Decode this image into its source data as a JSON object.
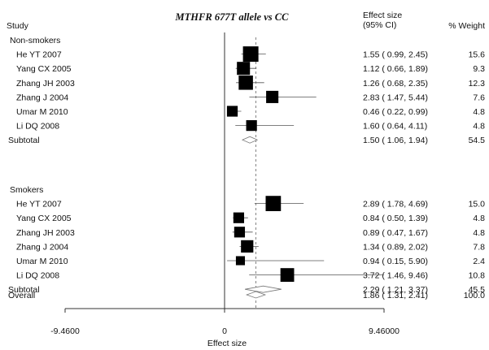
{
  "chart_data": {
    "type": "forest",
    "title": "MTHFR 677T allele vs CC",
    "headers": {
      "study": "Study",
      "effect_line1": "Effect size",
      "effect_line2": "(95% CI)",
      "weight": "% Weight"
    },
    "xlabel": "Effect size",
    "xlim": [
      -9.46,
      9.46
    ],
    "ticks": [
      {
        "value": -9.46,
        "label": "-9.4600"
      },
      {
        "value": 0,
        "label": "0"
      },
      {
        "value": 9.46,
        "label": "9.46000"
      }
    ],
    "overall_reference": 1.86,
    "groups": [
      {
        "name": "Non-smokers",
        "studies": [
          {
            "study": "He YT 2007",
            "es": 1.55,
            "lo": 0.99,
            "hi": 2.45,
            "ci_text": "1.55 ( 0.99, 2.45)",
            "weight": "15.6"
          },
          {
            "study": "Yang CX 2005",
            "es": 1.12,
            "lo": 0.66,
            "hi": 1.89,
            "ci_text": "1.12 ( 0.66, 1.89)",
            "weight": "9.3"
          },
          {
            "study": "Zhang JH 2003",
            "es": 1.26,
            "lo": 0.68,
            "hi": 2.35,
            "ci_text": "1.26 ( 0.68, 2.35)",
            "weight": "12.3"
          },
          {
            "study": "Zhang J 2004",
            "es": 2.83,
            "lo": 1.47,
            "hi": 5.44,
            "ci_text": "2.83 ( 1.47, 5.44)",
            "weight": "7.6"
          },
          {
            "study": "Umar M 2010",
            "es": 0.46,
            "lo": 0.22,
            "hi": 0.99,
            "ci_text": "0.46 ( 0.22, 0.99)",
            "weight": "4.8"
          },
          {
            "study": "Li DQ 2008",
            "es": 1.6,
            "lo": 0.64,
            "hi": 4.11,
            "ci_text": "1.60 ( 0.64, 4.11)",
            "weight": "4.8"
          }
        ],
        "subtotal": {
          "label": "Subtotal",
          "es": 1.5,
          "lo": 1.06,
          "hi": 1.94,
          "ci_text": "1.50 ( 1.06, 1.94)",
          "weight": "54.5"
        }
      },
      {
        "name": "Smokers",
        "studies": [
          {
            "study": "He YT 2007",
            "es": 2.89,
            "lo": 1.78,
            "hi": 4.69,
            "ci_text": "2.89 ( 1.78, 4.69)",
            "weight": "15.0"
          },
          {
            "study": "Yang CX 2005",
            "es": 0.84,
            "lo": 0.5,
            "hi": 1.39,
            "ci_text": "0.84 ( 0.50, 1.39)",
            "weight": "4.8"
          },
          {
            "study": "Zhang JH 2003",
            "es": 0.89,
            "lo": 0.47,
            "hi": 1.67,
            "ci_text": "0.89 ( 0.47, 1.67)",
            "weight": "4.8"
          },
          {
            "study": "Zhang J 2004",
            "es": 1.34,
            "lo": 0.89,
            "hi": 2.02,
            "ci_text": "1.34 ( 0.89, 2.02)",
            "weight": "7.8"
          },
          {
            "study": "Umar M 2010",
            "es": 0.94,
            "lo": 0.15,
            "hi": 5.9,
            "ci_text": "0.94 ( 0.15, 5.90)",
            "weight": "2.4"
          },
          {
            "study": "Li DQ 2008",
            "es": 3.72,
            "lo": 1.46,
            "hi": 9.46,
            "ci_text": "3.72 ( 1.46, 9.46)",
            "weight": "10.8"
          }
        ],
        "subtotal": {
          "label": "Subtotal",
          "es": 2.29,
          "lo": 1.21,
          "hi": 3.37,
          "ci_text": "2.29 ( 1.21, 3.37)",
          "weight": "45.5"
        }
      }
    ],
    "overall": {
      "label": "Overall",
      "es": 1.86,
      "lo": 1.31,
      "hi": 2.41,
      "ci_text": "1.86 ( 1.31, 2.41)",
      "weight": "100.0"
    }
  }
}
